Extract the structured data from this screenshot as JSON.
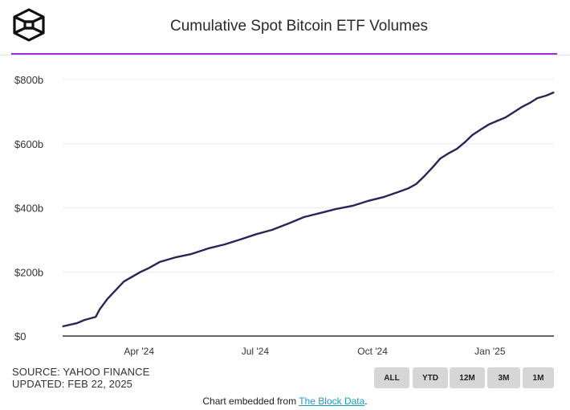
{
  "header": {
    "title": "Cumulative Spot Bitcoin ETF Volumes",
    "logo": "the-block-cube-logo",
    "accent_color": "#9b30d9"
  },
  "chart_data": {
    "type": "line",
    "title": "Cumulative Spot Bitcoin ETF Volumes",
    "xlabel": "",
    "ylabel": "",
    "ylim": [
      0,
      800
    ],
    "xlim": [
      "2024-02-03",
      "2025-02-22"
    ],
    "y_ticks": [
      "$0",
      "$200b",
      "$400b",
      "$600b",
      "$800b"
    ],
    "y_tick_values": [
      0,
      200,
      400,
      600,
      800
    ],
    "x_ticks": [
      {
        "label": "Apr '24",
        "date": "2024-04-01"
      },
      {
        "label": "Jul '24",
        "date": "2024-07-01"
      },
      {
        "label": "Oct '24",
        "date": "2024-10-01"
      },
      {
        "label": "Jan '25",
        "date": "2025-01-01"
      }
    ],
    "grid": true,
    "line_color": "#2b2556",
    "series": [
      {
        "x": [
          "2024-02-03",
          "2024-02-14",
          "2024-02-20",
          "2024-02-29",
          "2024-03-03",
          "2024-03-09",
          "2024-03-16",
          "2024-03-22",
          "2024-03-29",
          "2024-04-04",
          "2024-04-10",
          "2024-04-19",
          "2024-05-02",
          "2024-05-14",
          "2024-05-27",
          "2024-06-09",
          "2024-06-21",
          "2024-07-04",
          "2024-07-16",
          "2024-07-29",
          "2024-08-10",
          "2024-08-23",
          "2024-09-04",
          "2024-09-17",
          "2024-09-29",
          "2024-10-12",
          "2024-10-24",
          "2024-10-31",
          "2024-11-06",
          "2024-11-12",
          "2024-11-19",
          "2024-11-25",
          "2024-12-01",
          "2024-12-08",
          "2024-12-14",
          "2024-12-20",
          "2024-12-27",
          "2025-01-02",
          "2025-01-09",
          "2025-01-15",
          "2025-01-21",
          "2025-01-28",
          "2025-02-03",
          "2025-02-09",
          "2025-02-16",
          "2025-02-22"
        ],
        "values": [
          30,
          40,
          50,
          60,
          83,
          115,
          145,
          170,
          186,
          200,
          211,
          231,
          246,
          256,
          273,
          286,
          301,
          318,
          331,
          351,
          371,
          384,
          396,
          406,
          421,
          434,
          451,
          461,
          474,
          497,
          527,
          554,
          569,
          584,
          604,
          627,
          645,
          660,
          672,
          682,
          697,
          715,
          727,
          742,
          750,
          760
        ]
      }
    ]
  },
  "source": {
    "line1": "SOURCE: YAHOO FINANCE",
    "line2": "UPDATED: FEB 22, 2025"
  },
  "range_buttons": [
    "ALL",
    "YTD",
    "12M",
    "3M",
    "1M"
  ],
  "footer": {
    "prefix": "Chart embedded from ",
    "link": "The Block Data",
    "suffix": "."
  }
}
